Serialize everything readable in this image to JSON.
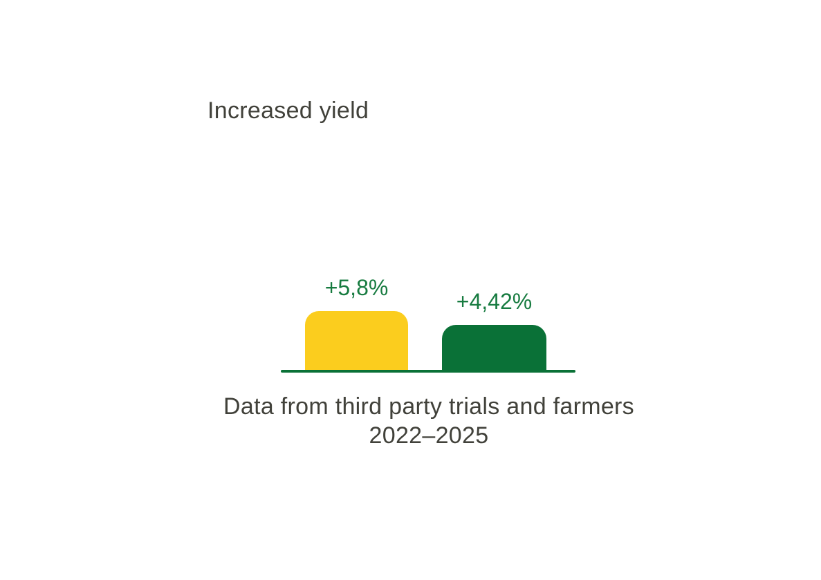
{
  "title": "Increased yield",
  "caption": {
    "line1": "Data from third party trials and farmers",
    "line2": "2022–2025"
  },
  "colors": {
    "text_dark": "#41413a",
    "bar_yellow": "#fbcd1e",
    "bar_green": "#0a7137",
    "label_green": "#177b40",
    "baseline_green": "#0a7137",
    "background": "#ffffff"
  },
  "chart_data": {
    "type": "bar",
    "title": "Increased yield",
    "categories": [
      "",
      ""
    ],
    "values": [
      5.8,
      4.42
    ],
    "labels": [
      "+5,8%",
      "+4,42%"
    ],
    "bar_colors": [
      "#fbcd1e",
      "#0a7137"
    ],
    "caption": "Data from third party trials and farmers 2022–2025",
    "xlabel": "",
    "ylabel": "",
    "ylim": [
      0,
      6
    ],
    "grid": false,
    "legend": false,
    "axis_ticks_visible": false,
    "value_labels_position": "above-bars"
  }
}
